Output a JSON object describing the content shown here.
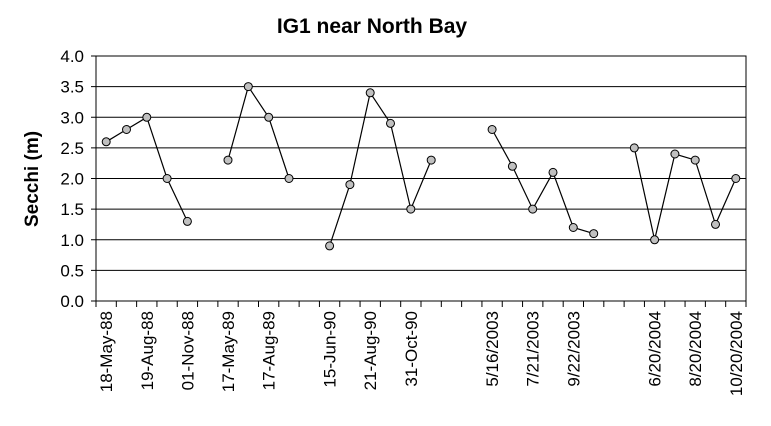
{
  "chart_data": {
    "type": "line",
    "title": "IG1 near North Bay",
    "ylabel": "Secchi (m)",
    "xlabel": "",
    "ylim": [
      0,
      4
    ],
    "yticks": [
      "0.0",
      "0.5",
      "1.0",
      "1.5",
      "2.0",
      "2.5",
      "3.0",
      "3.5",
      "4.0"
    ],
    "grid": "horizontal",
    "slots": 32,
    "x_tick_labels": [
      {
        "slot": 1,
        "label": "18-May-88"
      },
      {
        "slot": 3,
        "label": "19-Aug-88"
      },
      {
        "slot": 5,
        "label": "01-Nov-88"
      },
      {
        "slot": 7,
        "label": "17-May-89"
      },
      {
        "slot": 9,
        "label": "17-Aug-89"
      },
      {
        "slot": 12,
        "label": "15-Jun-90"
      },
      {
        "slot": 14,
        "label": "21-Aug-90"
      },
      {
        "slot": 16,
        "label": "31-Oct-90"
      },
      {
        "slot": 20,
        "label": "5/16/2003"
      },
      {
        "slot": 22,
        "label": "7/21/2003"
      },
      {
        "slot": 24,
        "label": "9/22/2003"
      },
      {
        "slot": 28,
        "label": "6/20/2004"
      },
      {
        "slot": 30,
        "label": "8/20/2004"
      },
      {
        "slot": 32,
        "label": "10/20/2004"
      }
    ],
    "segments": [
      [
        [
          1,
          2.6
        ],
        [
          2,
          2.8
        ],
        [
          3,
          3.0
        ],
        [
          4,
          2.0
        ],
        [
          5,
          1.3
        ]
      ],
      [
        [
          7,
          2.3
        ],
        [
          8,
          3.5
        ],
        [
          9,
          3.0
        ],
        [
          10,
          2.0
        ]
      ],
      [
        [
          12,
          0.9
        ],
        [
          13,
          1.9
        ],
        [
          14,
          3.4
        ],
        [
          15,
          2.9
        ],
        [
          16,
          1.5
        ],
        [
          17,
          2.3
        ]
      ],
      [
        [
          20,
          2.8
        ],
        [
          21,
          2.2
        ],
        [
          22,
          1.5
        ],
        [
          23,
          2.1
        ],
        [
          24,
          1.2
        ],
        [
          25,
          1.1
        ]
      ],
      [
        [
          27,
          2.5
        ],
        [
          28,
          1.0
        ],
        [
          29,
          2.4
        ],
        [
          30,
          2.3
        ],
        [
          31,
          1.25
        ],
        [
          32,
          2.0
        ]
      ]
    ]
  }
}
